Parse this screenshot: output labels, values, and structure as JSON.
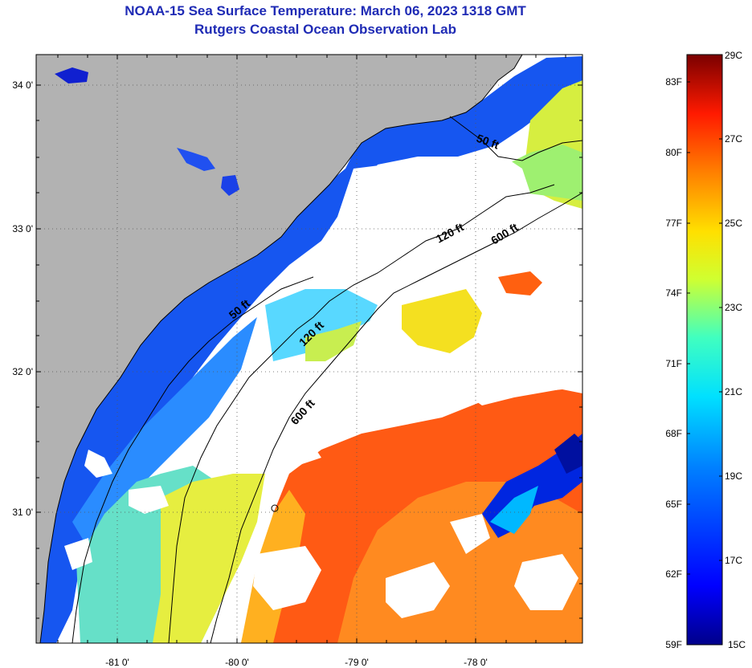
{
  "header": {
    "title": "NOAA-15 Sea Surface Temperature:  March 06, 2023 1318 GMT",
    "subtitle": "Rutgers Coastal Ocean Observation Lab"
  },
  "map": {
    "lat_labels": [
      "34 0'",
      "33 0'",
      "32 0'",
      "31 0'"
    ],
    "lon_labels": [
      "-81 0'",
      "-80 0'",
      "-79 0'",
      "-78 0'"
    ],
    "isobaths": [
      {
        "label": "50 ft"
      },
      {
        "label": "50 ft"
      },
      {
        "label": "120 ft"
      },
      {
        "label": "120 ft"
      },
      {
        "label": "600 ft"
      },
      {
        "label": "600 ft"
      }
    ]
  },
  "colorbar": {
    "celsius": [
      "29C",
      "27C",
      "25C",
      "23C",
      "21C",
      "19C",
      "17C",
      "15C"
    ],
    "fahrenheit": [
      "83F",
      "80F",
      "77F",
      "74F",
      "71F",
      "68F",
      "65F",
      "62F",
      "59F"
    ],
    "range_c": [
      15,
      29
    ]
  },
  "colors": {
    "title": "#1f2bb5",
    "land": "#b2b2b2",
    "cloud": "#ffffff"
  }
}
